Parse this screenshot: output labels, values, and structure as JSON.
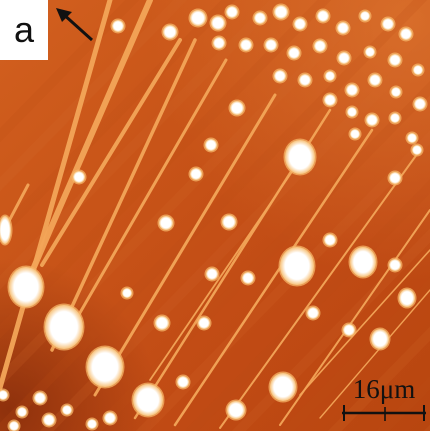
{
  "panel": {
    "label": "a"
  },
  "scale_bar": {
    "label": "16μm"
  },
  "icons": {
    "direction": "arrow-up-left-icon"
  },
  "colors": {
    "substrate_dark": "#a83a10",
    "substrate_mid": "#c8501a",
    "substrate_light": "#d86a2a",
    "terrace_step": "#e07a3a",
    "ridge": "#f0a050",
    "droplet": "#ffffff",
    "droplet_glow": "#f7c27a",
    "annotation": "#111111"
  }
}
